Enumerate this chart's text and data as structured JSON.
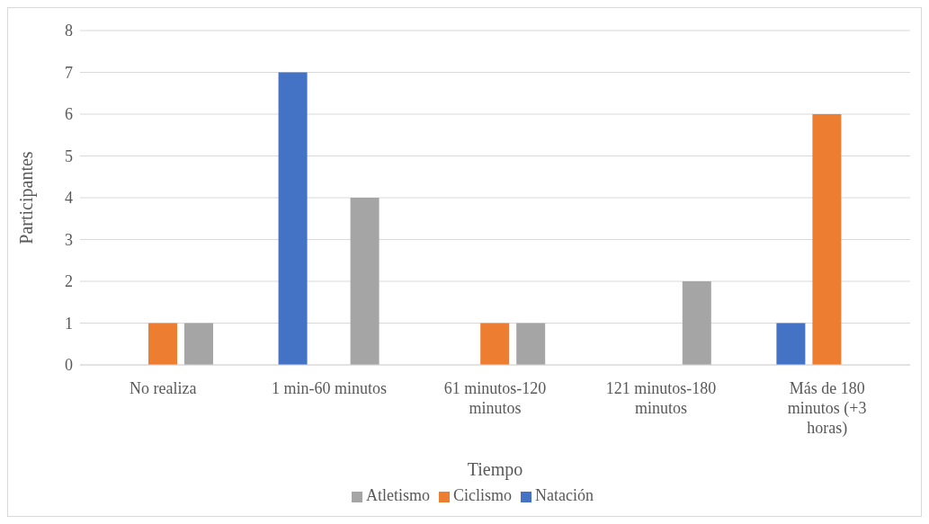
{
  "chart_data": {
    "type": "bar",
    "xlabel": "Tiempo",
    "ylabel": "Participantes",
    "categories": [
      "No realiza",
      "1 min-60 minutos",
      "61 minutos-120 minutos",
      "121 minutos-180 minutos",
      "Más de 180 minutos (+3 horas)"
    ],
    "series": [
      {
        "name": "Natación",
        "color": "#4472c4",
        "values": [
          0,
          7,
          0,
          0,
          1
        ]
      },
      {
        "name": "Ciclismo",
        "color": "#ed7d31",
        "values": [
          1,
          0,
          1,
          0,
          6
        ]
      },
      {
        "name": "Atletismo",
        "color": "#a5a5a5",
        "values": [
          1,
          4,
          1,
          2,
          0
        ]
      }
    ],
    "ylim": [
      0,
      8
    ],
    "yticks": [
      0,
      1,
      2,
      3,
      4,
      5,
      6,
      7,
      8
    ],
    "grid": "y",
    "legend": "bottom"
  }
}
